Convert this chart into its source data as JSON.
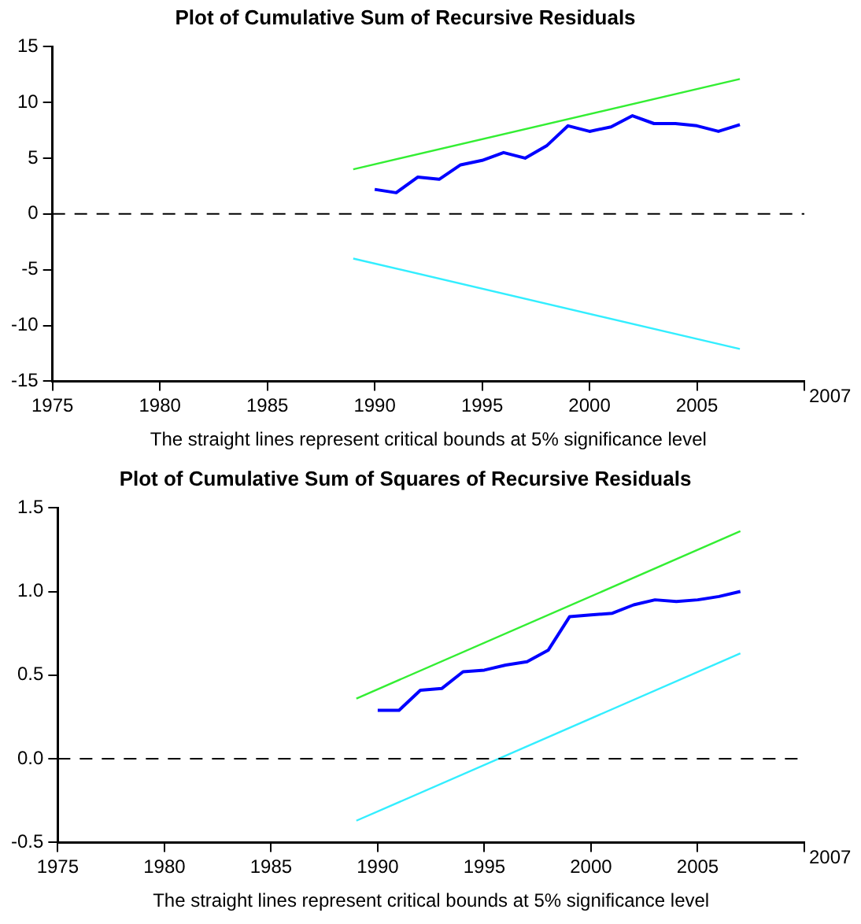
{
  "chart_data": [
    {
      "type": "line",
      "title": "Plot of Cumulative Sum of Recursive Residuals",
      "xlabel": "The straight lines represent critical bounds at 5% significance level",
      "xlim": [
        1975,
        2010
      ],
      "xticks": [
        1975,
        1980,
        1985,
        1990,
        1995,
        2000,
        2005,
        {
          "value": 2010,
          "label": null
        }
      ],
      "annotations": [
        "2007"
      ],
      "ylim": [
        -15,
        15
      ],
      "yticks": [
        -15,
        -10,
        -5,
        0,
        5,
        10,
        15
      ],
      "grid": false,
      "legend": false,
      "series": [
        {
          "color": "#0000ff",
          "x": [
            1990,
            1991,
            1992,
            1993,
            1994,
            1995,
            1996,
            1997,
            1998,
            1999,
            2000,
            2001,
            2002,
            2003,
            2004,
            2005,
            2006,
            2007
          ],
          "values": [
            2.2,
            1.9,
            3.3,
            3.1,
            4.4,
            4.8,
            5.5,
            5.0,
            6.1,
            7.9,
            7.4,
            7.8,
            8.8,
            8.1,
            8.1,
            7.9,
            7.4,
            8.0
          ]
        },
        {
          "color": "#33ee33",
          "x": [
            1989,
            2007
          ],
          "values": [
            4.0,
            12.1
          ]
        },
        {
          "color": "#33eeff",
          "x": [
            1989,
            2007
          ],
          "values": [
            -4.0,
            -12.1
          ]
        }
      ],
      "ref_lines": [
        {
          "axis": "y",
          "value": 0,
          "color": "#000000",
          "line_style": "dashed"
        }
      ]
    },
    {
      "type": "line",
      "title": "Plot of Cumulative Sum of Squares of Recursive Residuals",
      "xlabel": "The straight lines represent critical bounds at 5% significance level",
      "xlim": [
        1975,
        2010
      ],
      "xticks": [
        1975,
        1980,
        1985,
        1990,
        1995,
        2000,
        2005,
        {
          "value": 2010,
          "label": null
        }
      ],
      "annotations": [
        "2007"
      ],
      "ylim": [
        -0.5,
        1.5
      ],
      "yticks": [
        {
          "value": -0.5,
          "label": "-0.5"
        },
        {
          "value": 0,
          "label": "0.0"
        },
        {
          "value": 0.5,
          "label": "0.5"
        },
        {
          "value": 1,
          "label": "1.0"
        },
        {
          "value": 1.5,
          "label": "1.5"
        }
      ],
      "grid": false,
      "legend": false,
      "series": [
        {
          "color": "#0000ff",
          "x": [
            1990,
            1991,
            1992,
            1993,
            1994,
            1995,
            1996,
            1997,
            1998,
            1999,
            2000,
            2001,
            2002,
            2003,
            2004,
            2005,
            2006,
            2007
          ],
          "values": [
            0.29,
            0.29,
            0.41,
            0.42,
            0.52,
            0.53,
            0.56,
            0.58,
            0.65,
            0.85,
            0.86,
            0.87,
            0.92,
            0.95,
            0.94,
            0.95,
            0.97,
            1.0
          ]
        },
        {
          "color": "#33ee33",
          "x": [
            1989,
            2007
          ],
          "values": [
            0.36,
            1.36
          ]
        },
        {
          "color": "#33eeff",
          "x": [
            1989,
            2007
          ],
          "values": [
            -0.37,
            0.63
          ]
        }
      ],
      "ref_lines": [
        {
          "axis": "y",
          "value": 0,
          "color": "#000000",
          "line_style": "dashed"
        }
      ]
    }
  ]
}
